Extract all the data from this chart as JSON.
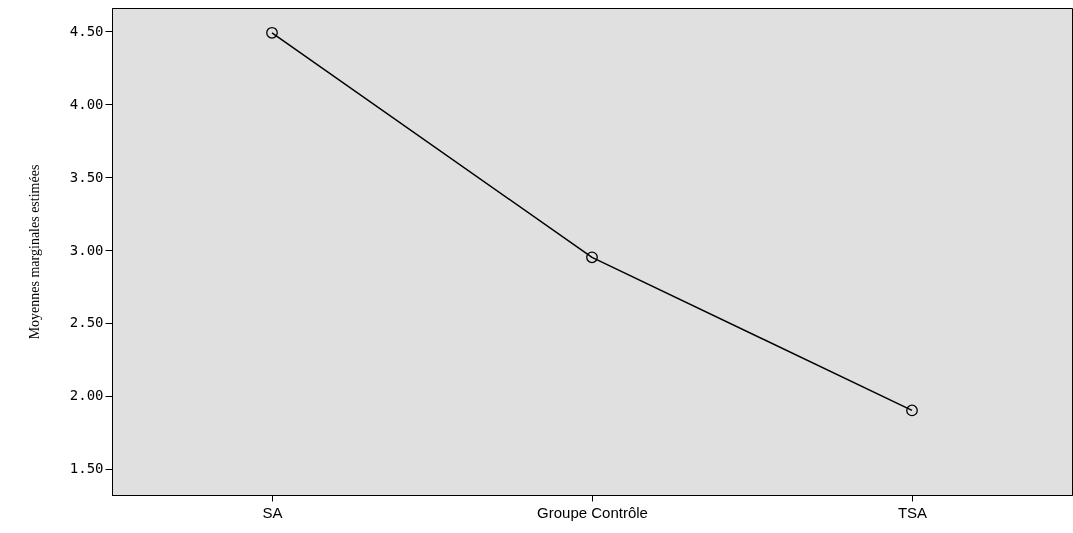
{
  "chart_data": {
    "type": "line",
    "ylabel": "Moyennes marginales estimées",
    "categories": [
      "SA",
      "Groupe Contrôle",
      "TSA"
    ],
    "series": [
      {
        "color": "#000000",
        "values": [
          4.49,
          2.95,
          1.9
        ]
      }
    ],
    "ylim": [
      1.32,
      4.66
    ],
    "yticks": [
      {
        "value": 1.5,
        "label": "1.50"
      },
      {
        "value": 2,
        "label": "2.00"
      },
      {
        "value": 2.5,
        "label": "2.50"
      },
      {
        "value": 3,
        "label": "3.00"
      },
      {
        "value": 3.5,
        "label": "3.50"
      },
      {
        "value": 4,
        "label": "4.00"
      },
      {
        "value": 4.5,
        "label": "4.50"
      }
    ],
    "grid": false,
    "legend": false,
    "marker": "circle",
    "line_style": "solid"
  }
}
